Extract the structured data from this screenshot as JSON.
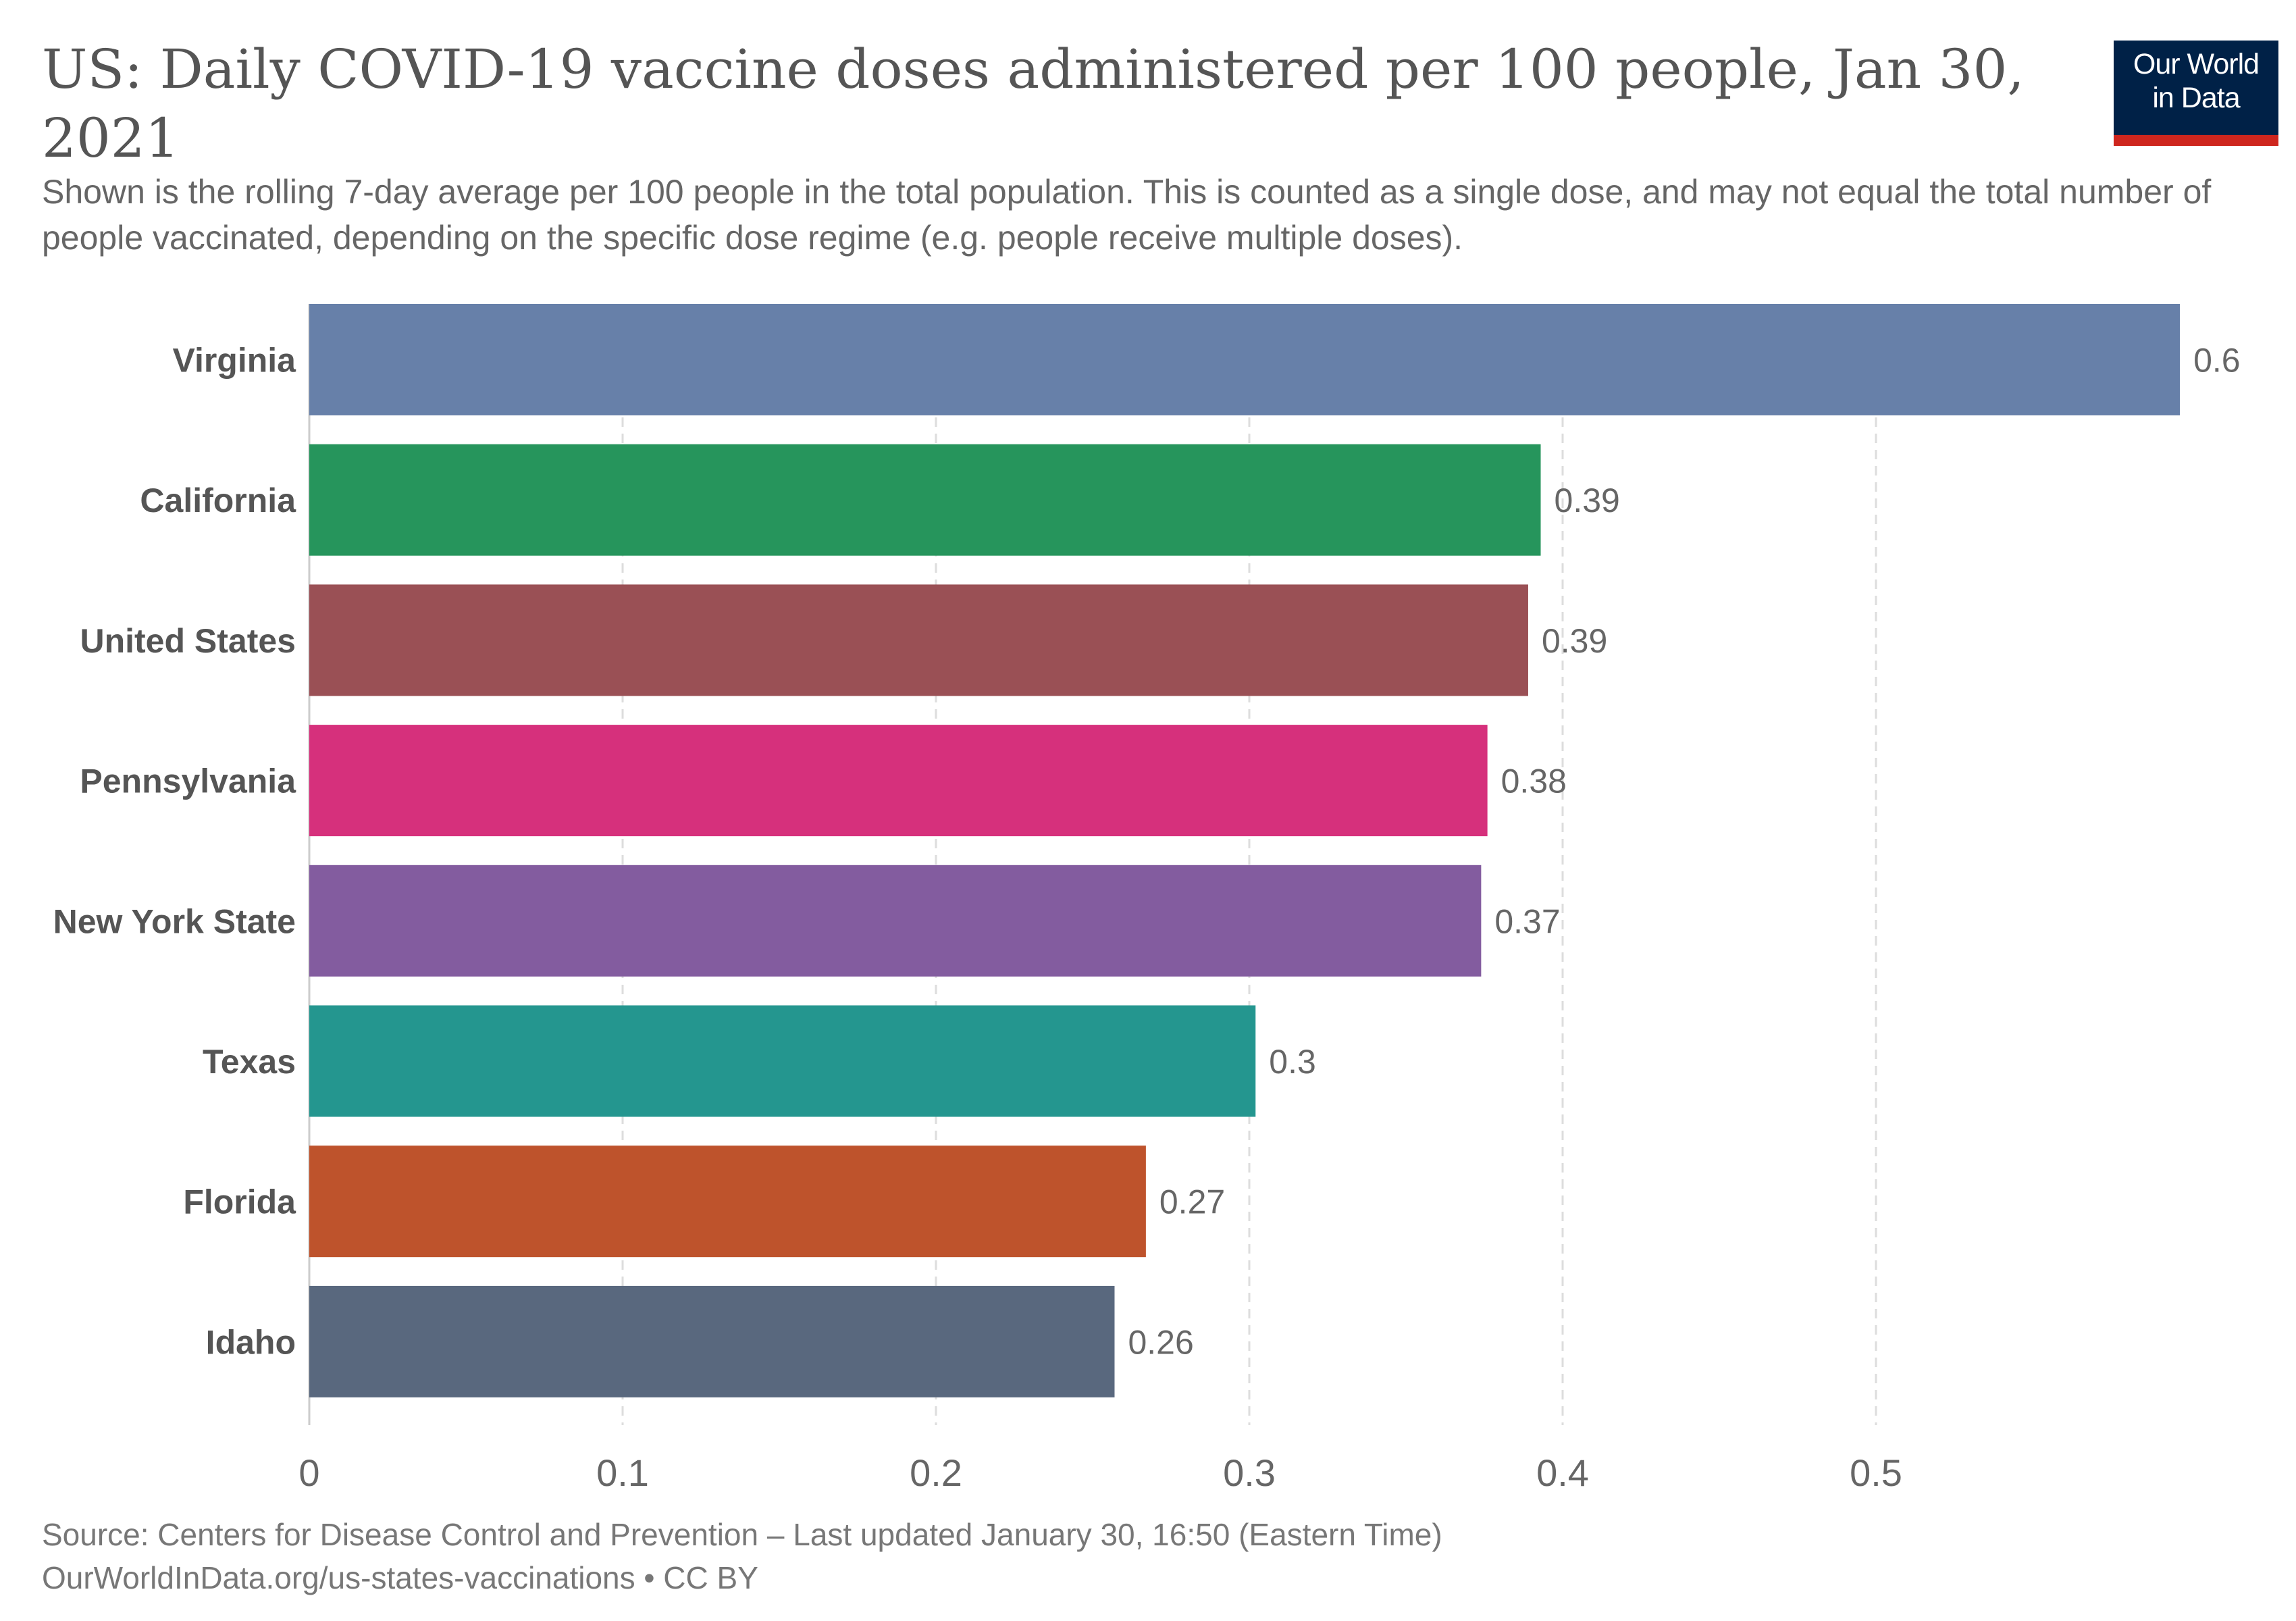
{
  "header": {
    "title": "US: Daily COVID-19 vaccine doses administered per 100 people, Jan 30, 2021",
    "subtitle": "Shown is the rolling 7-day average per 100 people in the total population. This is counted as a single dose, and may not equal the total number of people vaccinated, depending on the specific dose regime (e.g. people receive multiple doses).",
    "logo_line1": "Our World",
    "logo_line2": "in Data"
  },
  "footer": {
    "source": "Source: Centers for Disease Control and Prevention – Last updated January 30, 16:50 (Eastern Time)",
    "url_license": "OurWorldInData.org/us-states-vaccinations • CC BY"
  },
  "colors": {
    "logo_bg": "#002147",
    "logo_accent": "#ce261e"
  },
  "chart_data": {
    "type": "bar",
    "orientation": "horizontal",
    "title": "US: Daily COVID-19 vaccine doses administered per 100 people, Jan 30, 2021",
    "xlabel": "",
    "ylabel": "",
    "xlim": [
      0,
      0.6
    ],
    "x_ticks": [
      0,
      0.1,
      0.2,
      0.3,
      0.4,
      0.5
    ],
    "x_tick_labels": [
      "0",
      "0.1",
      "0.2",
      "0.3",
      "0.4",
      "0.5"
    ],
    "grid": "vertical dashed",
    "categories": [
      "Virginia",
      "California",
      "United States",
      "Pennsylvania",
      "New York State",
      "Texas",
      "Florida",
      "Idaho"
    ],
    "values": [
      0.597,
      0.393,
      0.389,
      0.376,
      0.374,
      0.302,
      0.267,
      0.257
    ],
    "value_labels": [
      "0.6",
      "0.39",
      "0.39",
      "0.38",
      "0.37",
      "0.3",
      "0.27",
      "0.26"
    ],
    "bar_colors": [
      "#6780a9",
      "#26955c",
      "#9a5055",
      "#d6307c",
      "#835c9f",
      "#24968f",
      "#be532c",
      "#59687e"
    ]
  }
}
